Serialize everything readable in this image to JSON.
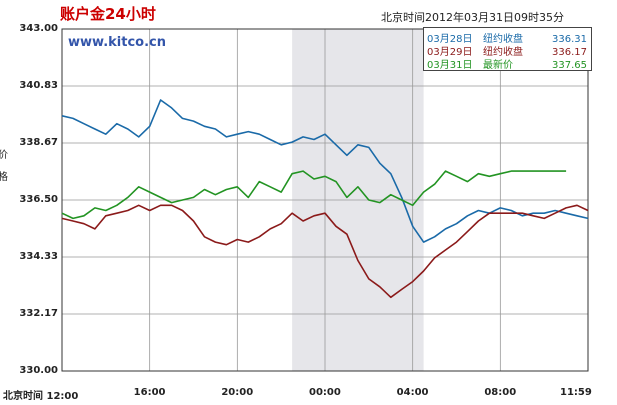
{
  "header": {
    "title": "账户金24小时",
    "timestamp": "北京时间2012年03月31日09时35分",
    "site": "www.kitco.cn"
  },
  "legend": [
    {
      "date": "03月28日",
      "label": "纽约收盘",
      "value": "336.31",
      "color": "#1a6aa8"
    },
    {
      "date": "03月29日",
      "label": "纽约收盘",
      "value": "336.17",
      "color": "#8b1a1a"
    },
    {
      "date": "03月31日",
      "label": "最新价",
      "value": "337.65",
      "color": "#239423"
    }
  ],
  "left_label_fragments": [
    "价",
    "格"
  ],
  "chart_data": {
    "type": "line",
    "title": "账户金24小时",
    "xlabel": "北京时间",
    "ylabel": "",
    "ylim": [
      330.0,
      343.0
    ],
    "yticks": [
      "343.00",
      "340.83",
      "338.67",
      "336.50",
      "334.33",
      "332.17",
      "330.00"
    ],
    "xticks": [
      "北京时间 12:00",
      "16:00",
      "20:00",
      "00:00",
      "04:00",
      "08:00",
      "11:59"
    ],
    "xlim": [
      0,
      24
    ],
    "grid": true,
    "shaded_region": {
      "from": 10.5,
      "to": 16.5
    },
    "series": [
      {
        "name": "03月28日",
        "color": "#1a6aa8",
        "x": [
          0,
          0.5,
          1,
          1.5,
          2,
          2.5,
          3,
          3.5,
          4,
          4.5,
          5,
          5.5,
          6,
          6.5,
          7,
          7.5,
          8,
          8.5,
          9,
          9.5,
          10,
          10.5,
          11,
          11.5,
          12,
          12.5,
          13,
          13.5,
          14,
          14.5,
          15,
          15.5,
          16,
          16.5,
          17,
          17.5,
          18,
          18.5,
          19,
          19.5,
          20,
          20.5,
          21,
          21.5,
          22,
          22.5,
          23,
          23.5,
          24
        ],
        "y": [
          339.7,
          339.6,
          339.4,
          339.2,
          339.0,
          339.4,
          339.2,
          338.9,
          339.3,
          340.3,
          340.0,
          339.6,
          339.5,
          339.3,
          339.2,
          338.9,
          339.0,
          339.1,
          339.0,
          338.8,
          338.6,
          338.7,
          338.9,
          338.8,
          339.0,
          338.6,
          338.2,
          338.6,
          338.5,
          337.9,
          337.5,
          336.6,
          335.5,
          334.9,
          335.1,
          335.4,
          335.6,
          335.9,
          336.1,
          336.0,
          336.2,
          336.1,
          335.9,
          336.0,
          336.0,
          336.1,
          336.0,
          335.9,
          335.8
        ]
      },
      {
        "name": "03月29日",
        "color": "#8b1a1a",
        "x": [
          0,
          0.5,
          1,
          1.5,
          2,
          2.5,
          3,
          3.5,
          4,
          4.5,
          5,
          5.5,
          6,
          6.5,
          7,
          7.5,
          8,
          8.5,
          9,
          9.5,
          10,
          10.5,
          11,
          11.5,
          12,
          12.5,
          13,
          13.5,
          14,
          14.5,
          15,
          15.5,
          16,
          16.5,
          17,
          17.5,
          18,
          18.5,
          19,
          19.5,
          20,
          20.5,
          21,
          21.5,
          22,
          22.5,
          23,
          23.5,
          24
        ],
        "y": [
          335.8,
          335.7,
          335.6,
          335.4,
          335.9,
          336.0,
          336.1,
          336.3,
          336.1,
          336.3,
          336.3,
          336.1,
          335.7,
          335.1,
          334.9,
          334.8,
          335.0,
          334.9,
          335.1,
          335.4,
          335.6,
          336.0,
          335.7,
          335.9,
          336.0,
          335.5,
          335.2,
          334.2,
          333.5,
          333.2,
          332.8,
          333.1,
          333.4,
          333.8,
          334.3,
          334.6,
          334.9,
          335.3,
          335.7,
          336.0,
          336.0,
          336.0,
          336.0,
          335.9,
          335.8,
          336.0,
          336.2,
          336.3,
          336.1
        ]
      },
      {
        "name": "03月31日",
        "color": "#239423",
        "x": [
          0,
          0.5,
          1,
          1.5,
          2,
          2.5,
          3,
          3.5,
          4,
          4.5,
          5,
          5.5,
          6,
          6.5,
          7,
          7.5,
          8,
          8.5,
          9,
          9.5,
          10,
          10.5,
          11,
          11.5,
          12,
          12.5,
          13,
          13.5,
          14,
          14.5,
          15,
          15.5,
          16,
          16.5,
          17,
          17.5,
          18,
          18.5,
          19,
          19.5,
          20,
          20.5,
          21,
          21.5,
          22,
          22.5,
          23
        ],
        "y": [
          336.0,
          335.8,
          335.9,
          336.2,
          336.1,
          336.3,
          336.6,
          337.0,
          336.8,
          336.6,
          336.4,
          336.5,
          336.6,
          336.9,
          336.7,
          336.9,
          337.0,
          336.6,
          337.2,
          337.0,
          336.8,
          337.5,
          337.6,
          337.3,
          337.4,
          337.2,
          336.6,
          337.0,
          336.5,
          336.4,
          336.7,
          336.5,
          336.3,
          336.8,
          337.1,
          337.6,
          337.4,
          337.2,
          337.5,
          337.4,
          337.5,
          337.6,
          337.6,
          337.6,
          337.6,
          337.6,
          337.6
        ]
      }
    ]
  }
}
